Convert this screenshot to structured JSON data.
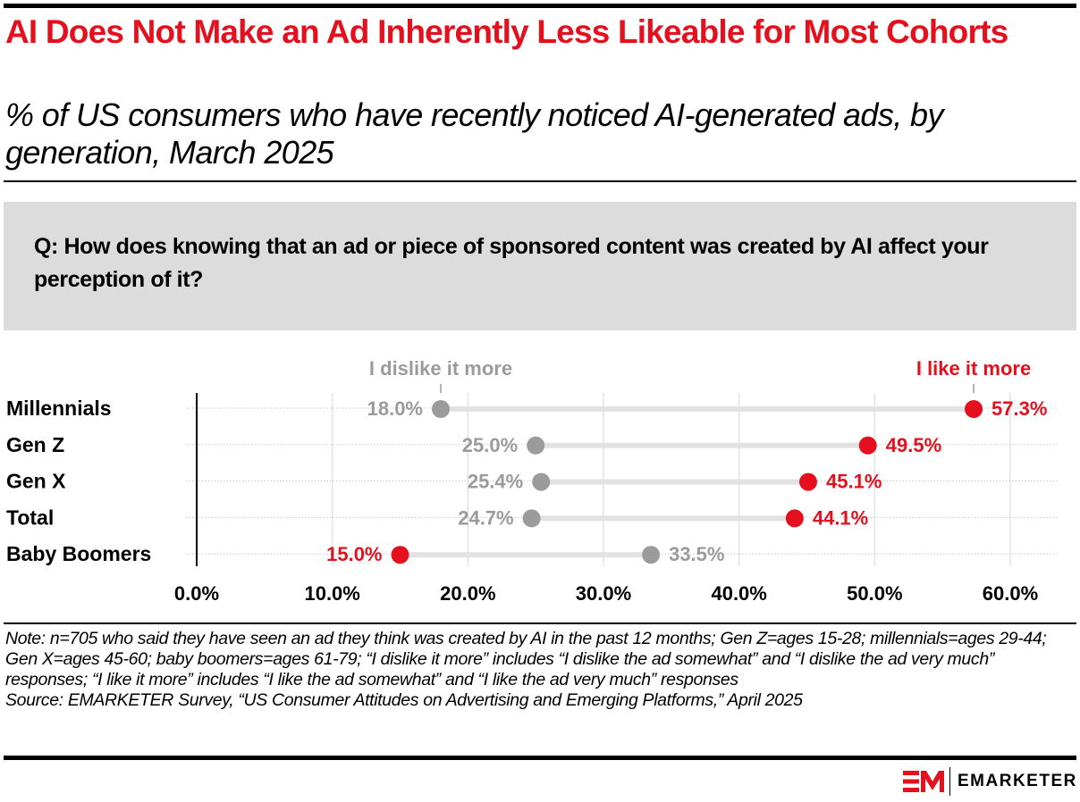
{
  "header": {
    "title": "AI Does Not Make an Ad Inherently Less Likeable for Most Cohorts",
    "subtitle": "% of US consumers who have recently noticed AI-generated ads, by generation, March 2025"
  },
  "question": "Q: How does knowing that an ad or piece of sponsored content was created by AI affect your perception of it?",
  "colors": {
    "accent_red": "#e4101e",
    "neutral_gray": "#9b9b9b",
    "connector": "#e2e2e2",
    "question_bg": "#dcdcdc"
  },
  "chart_data": {
    "type": "dumbbell",
    "title": "AI Does Not Make an Ad Inherently Less Likeable for Most Cohorts",
    "subtitle": "% of US consumers who have recently noticed AI-generated ads, by generation, March 2025",
    "categories": [
      "Millennials",
      "Gen Z",
      "Gen X",
      "Total",
      "Baby Boomers"
    ],
    "series": [
      {
        "name": "I dislike it more",
        "values": [
          18.0,
          25.0,
          25.4,
          24.7,
          33.5
        ],
        "labels": [
          "18.0%",
          "25.0%",
          "25.4%",
          "24.7%",
          "33.5%"
        ]
      },
      {
        "name": "I like it more",
        "values": [
          57.3,
          49.5,
          45.1,
          44.1,
          15.0
        ],
        "labels": [
          "57.3%",
          "49.5%",
          "45.1%",
          "44.1%",
          "15.0%"
        ]
      }
    ],
    "x_ticks": [
      0,
      10,
      20,
      30,
      40,
      50,
      60
    ],
    "x_tick_labels": [
      "0.0%",
      "10.0%",
      "20.0%",
      "30.0%",
      "40.0%",
      "50.0%",
      "60.0%"
    ],
    "xlim": [
      0,
      60
    ],
    "xlabel": "",
    "ylabel": "",
    "grid": true,
    "legend_placement": "top, labels attached to first row"
  },
  "footer": {
    "note": "Note: n=705 who said they have seen an ad they think was created by AI in the past 12 months; Gen Z=ages 15-28; millennials=ages 29-44; Gen X=ages 45-60; baby boomers=ages 61-79; “I dislike it more” includes “I dislike the ad somewhat” and “I dislike the ad very much” responses; “I like it more” includes “I like the ad somewhat” and “I like the ad very much” responses",
    "source": "Source: EMARKETER Survey, “US Consumer Attitudes on Advertising and Emerging Platforms,” April 2025",
    "brand": "EMARKETER"
  }
}
